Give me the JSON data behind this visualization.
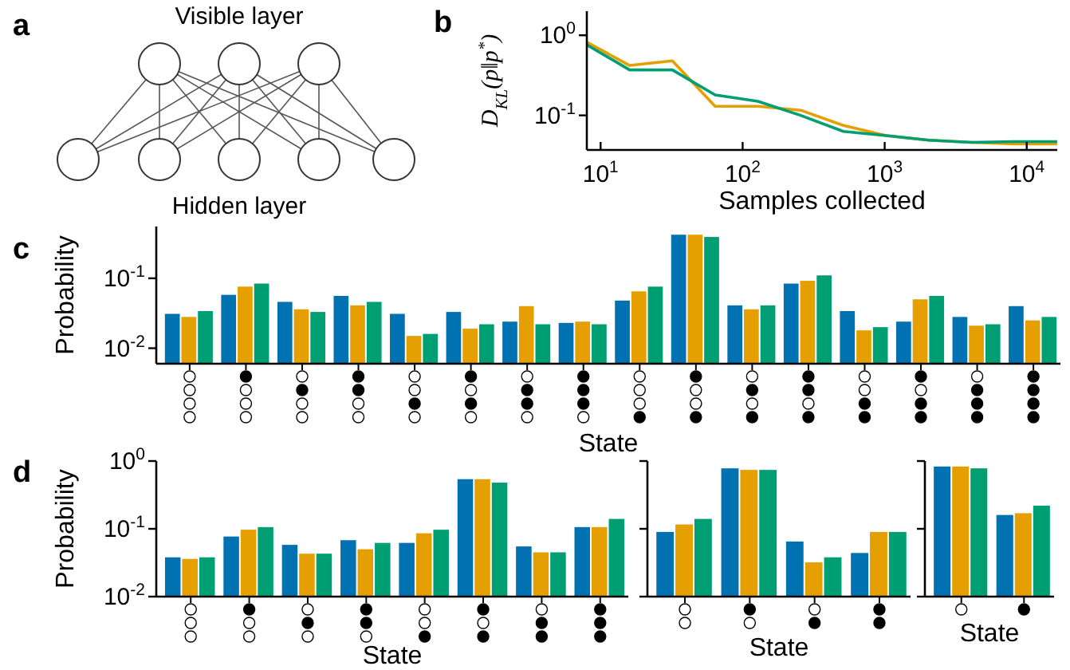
{
  "chart_data": [
    {
      "type": "other",
      "title": "Visible layer",
      "annotations": [
        "a",
        "Hidden layer"
      ]
    },
    {
      "type": "line",
      "xlabel": "Samples collected",
      "ylabel": "D$_{KL}$(p‖p$^{*}$)",
      "annotations": [
        "b"
      ],
      "log": "xy",
      "x": [
        8,
        16,
        32,
        64,
        128,
        256,
        512,
        1024,
        2048,
        4096,
        8192,
        16384
      ],
      "xlim": [
        8,
        16400
      ],
      "xticks": [
        {
          "value": 10,
          "label": "10$^{1}$"
        },
        {
          "value": 100,
          "label": "10$^{2}$"
        },
        {
          "value": 1000,
          "label": "10$^{3}$"
        },
        {
          "value": 10000,
          "label": "10$^{4}$"
        }
      ],
      "ylim": [
        0.037,
        2
      ],
      "yticks": [
        {
          "value": 1,
          "label": "10$^{0}$"
        },
        {
          "value": 0.1,
          "label": "10$^{-1}$"
        }
      ],
      "series": [
        {
          "color": "#e69f00",
          "values": [
            0.82,
            0.42,
            0.48,
            0.13,
            0.13,
            0.116,
            0.075,
            0.056,
            0.049,
            0.046,
            0.044,
            0.044
          ]
        },
        {
          "color": "#009e73",
          "values": [
            0.76,
            0.37,
            0.37,
            0.18,
            0.15,
            0.1,
            0.063,
            0.056,
            0.049,
            0.046,
            0.047,
            0.047
          ]
        }
      ]
    },
    {
      "type": "bar",
      "xlabel": "State",
      "ylabel": "Probability",
      "annotations": [
        "c"
      ],
      "log": true,
      "tick_labels": "y",
      "categories": [
        null,
        null,
        null,
        null,
        null,
        null,
        null,
        null,
        null,
        null,
        null,
        null,
        null,
        null,
        null,
        null
      ],
      "ylim": [
        0.006,
        0.55
      ],
      "yticks": [
        {
          "value": 0.1,
          "label": "10$^{-1}$"
        },
        {
          "value": 0.01,
          "label": "10$^{-2}$"
        }
      ],
      "series": [
        {
          "color": "#0072b2",
          "values": [
            0.031,
            0.058,
            0.046,
            0.056,
            0.031,
            0.033,
            0.024,
            0.023,
            0.048,
            0.42,
            0.041,
            0.084,
            0.034,
            0.024,
            0.028,
            0.04
          ]
        },
        {
          "color": "#e69f00",
          "values": [
            0.028,
            0.076,
            0.036,
            0.041,
            0.015,
            0.019,
            0.04,
            0.024,
            0.065,
            0.42,
            0.036,
            0.092,
            0.018,
            0.05,
            0.021,
            0.025
          ]
        },
        {
          "color": "#009e73",
          "values": [
            0.034,
            0.084,
            0.033,
            0.046,
            0.016,
            0.022,
            0.022,
            0.022,
            0.076,
            0.39,
            0.041,
            0.11,
            0.02,
            0.056,
            0.022,
            0.028
          ]
        }
      ]
    },
    {
      "type": "bar",
      "xlabel": "State",
      "ylabel": "Probability",
      "annotations": [
        "d"
      ],
      "log": true,
      "tick_labels": "y",
      "categories": [
        null,
        null,
        null,
        null,
        null,
        null,
        null,
        null
      ],
      "ylim": [
        0.01,
        1
      ],
      "yticks": [
        {
          "value": 1,
          "label": "10$^{0}$"
        },
        {
          "value": 0.1,
          "label": "10$^{-1}$"
        },
        {
          "value": 0.01,
          "label": "10$^{-2}$"
        }
      ],
      "series": [
        {
          "color": "#0072b2",
          "values": [
            0.038,
            0.077,
            0.058,
            0.068,
            0.062,
            0.54,
            0.055,
            0.106
          ]
        },
        {
          "color": "#e69f00",
          "values": [
            0.036,
            0.097,
            0.043,
            0.05,
            0.086,
            0.54,
            0.045,
            0.106
          ]
        },
        {
          "color": "#009e73",
          "values": [
            0.038,
            0.106,
            0.043,
            0.062,
            0.097,
            0.48,
            0.045,
            0.14
          ]
        }
      ]
    },
    {
      "type": "bar",
      "xlabel": "State",
      "log": true,
      "tick_labels": false,
      "categories": [
        null,
        null,
        null,
        null
      ],
      "ylim": [
        0.01,
        1
      ],
      "yticks": [
        {
          "value": 1,
          "label": null
        },
        {
          "value": 0.1,
          "label": null
        },
        {
          "value": 0.01,
          "label": null
        }
      ],
      "series": [
        {
          "color": "#0072b2",
          "values": [
            0.09,
            0.78,
            0.065,
            0.044
          ]
        },
        {
          "color": "#e69f00",
          "values": [
            0.116,
            0.74,
            0.032,
            0.09
          ]
        },
        {
          "color": "#009e73",
          "values": [
            0.14,
            0.74,
            0.038,
            0.09
          ]
        }
      ]
    },
    {
      "type": "bar",
      "xlabel": "State",
      "log": true,
      "tick_labels": false,
      "categories": [
        null,
        null
      ],
      "ylim": [
        0.01,
        1
      ],
      "yticks": [
        {
          "value": 1,
          "label": null
        },
        {
          "value": 0.1,
          "label": null
        },
        {
          "value": 0.01,
          "label": null
        }
      ],
      "series": [
        {
          "color": "#0072b2",
          "values": [
            0.83,
            0.16
          ]
        },
        {
          "color": "#e69f00",
          "values": [
            0.83,
            0.17
          ]
        },
        {
          "color": "#009e73",
          "values": [
            0.78,
            0.22
          ]
        }
      ]
    }
  ]
}
